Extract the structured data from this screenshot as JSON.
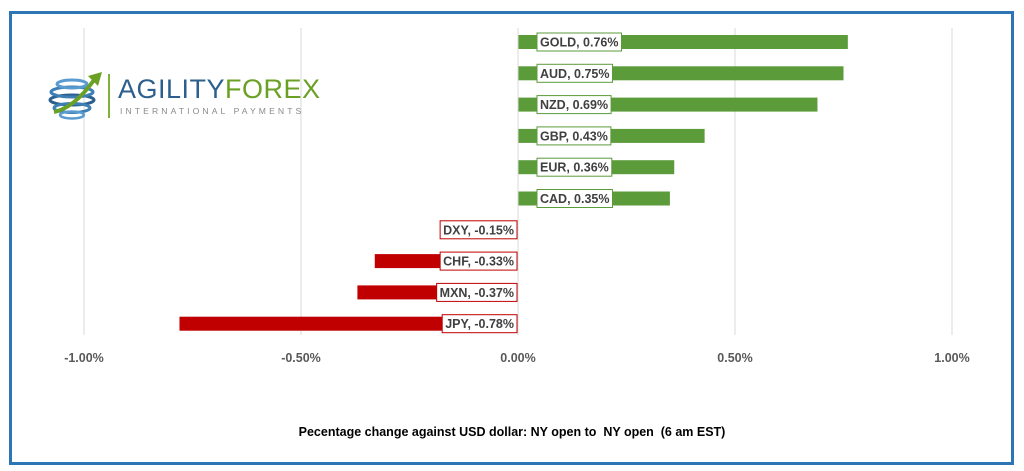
{
  "logo": {
    "name_part1": "AGILITY",
    "name_part2": "FOREX",
    "tagline": "INTERNATIONAL PAYMENTS"
  },
  "caption": "Pecentage change against USD dollar: NY open to  NY open  (6 am EST)",
  "colors": {
    "positive": "#5b9b3a",
    "negative": "#c00000",
    "border": "#2e75b6",
    "grid": "#d9d9d9"
  },
  "chart_data": {
    "type": "bar",
    "orientation": "horizontal",
    "unit": "%",
    "xlim": [
      -1.0,
      1.0
    ],
    "grid": true,
    "x_ticks": [
      -1.0,
      -0.5,
      0.0,
      0.5,
      1.0
    ],
    "x_tick_labels": [
      "-1.00%",
      "-0.50%",
      "0.00%",
      "0.50%",
      "1.00%"
    ],
    "categories": [
      "GOLD",
      "AUD",
      "NZD",
      "GBP",
      "EUR",
      "CAD",
      "DXY",
      "CHF",
      "MXN",
      "JPY"
    ],
    "values": [
      0.76,
      0.75,
      0.69,
      0.43,
      0.36,
      0.35,
      -0.15,
      -0.33,
      -0.37,
      -0.78
    ],
    "data_labels": [
      "GOLD, 0.76%",
      "AUD, 0.75%",
      "NZD, 0.69%",
      "GBP, 0.43%",
      "EUR, 0.36%",
      "CAD, 0.35%",
      "DXY, -0.15%",
      "CHF, -0.33%",
      "MXN, -0.37%",
      "JPY, -0.78%"
    ],
    "xlabel": "Pecentage change against USD dollar: NY open to  NY open  (6 am EST)"
  }
}
